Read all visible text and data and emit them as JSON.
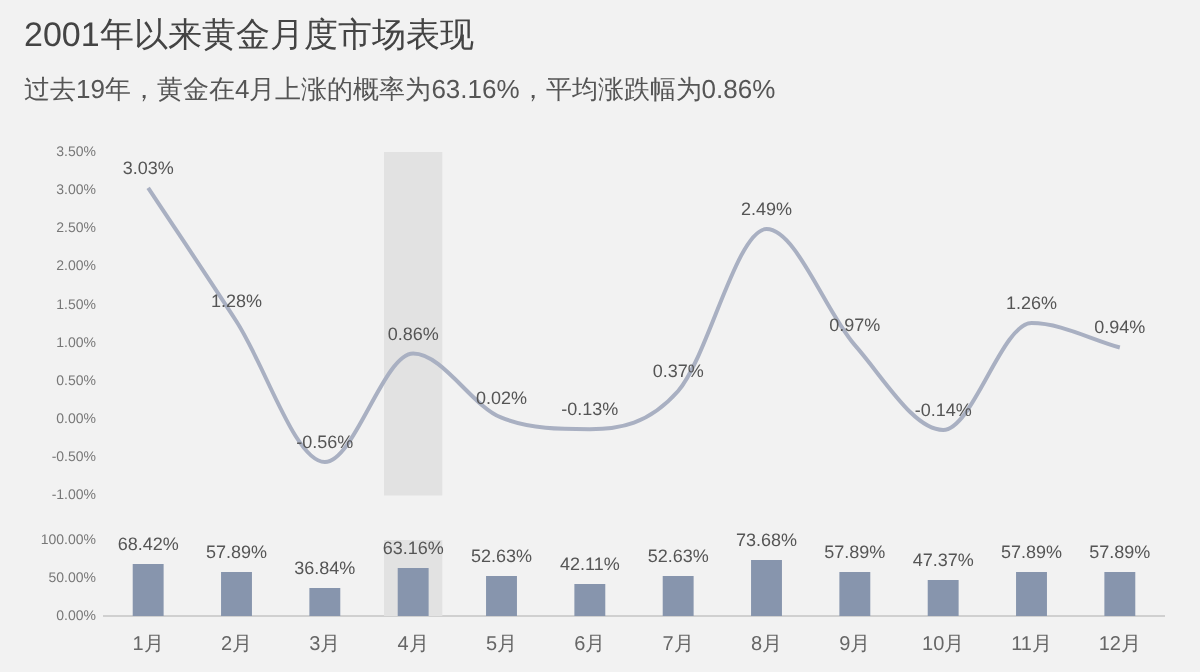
{
  "chart_data": [
    {
      "type": "line",
      "title": "2001年以来黄金月度市场表现",
      "subtitle": "过去19年，黄金在4月上涨的概率为63.16%，平均涨跌幅为0.86%",
      "categories": [
        "1月",
        "2月",
        "3月",
        "4月",
        "5月",
        "6月",
        "7月",
        "8月",
        "9月",
        "10月",
        "11月",
        "12月"
      ],
      "values": [
        3.03,
        1.28,
        -0.56,
        0.86,
        0.02,
        -0.13,
        0.37,
        2.49,
        0.97,
        -0.14,
        1.26,
        0.94
      ],
      "value_labels": [
        "3.03%",
        "1.28%",
        "-0.56%",
        "0.86%",
        "0.02%",
        "-0.13%",
        "0.37%",
        "2.49%",
        "0.97%",
        "-0.14%",
        "1.26%",
        "0.94%"
      ],
      "color": "#a9b0c2",
      "ylim": [
        -1,
        3.5
      ],
      "yticks": [
        {
          "value": -1,
          "label": "-1.00%"
        },
        {
          "value": -0.5,
          "label": "-0.50%"
        },
        {
          "value": 0,
          "label": "0.00%"
        },
        {
          "value": 0.5,
          "label": "0.50%"
        },
        {
          "value": 1,
          "label": "1.00%"
        },
        {
          "value": 1.5,
          "label": "1.50%"
        },
        {
          "value": 2,
          "label": "2.00%"
        },
        {
          "value": 2.5,
          "label": "2.50%"
        },
        {
          "value": 3,
          "label": "3.00%"
        },
        {
          "value": 3.5,
          "label": "3.50%"
        }
      ],
      "tick_labels": "y",
      "bands": [
        {
          "axis": "x",
          "from": "4月",
          "to": "4月",
          "color": "#e2e2e2"
        }
      ]
    },
    {
      "type": "bar",
      "categories": [
        "1月",
        "2月",
        "3月",
        "4月",
        "5月",
        "6月",
        "7月",
        "8月",
        "9月",
        "10月",
        "11月",
        "12月"
      ],
      "values": [
        68.42,
        57.89,
        36.84,
        63.16,
        52.63,
        42.11,
        52.63,
        73.68,
        57.89,
        47.37,
        57.89,
        57.89
      ],
      "value_labels": [
        "68.42%",
        "57.89%",
        "36.84%",
        "63.16%",
        "52.63%",
        "42.11%",
        "52.63%",
        "73.68%",
        "57.89%",
        "47.37%",
        "57.89%",
        "57.89%"
      ],
      "color": "#8795ad",
      "ylim": [
        0,
        100
      ],
      "yticks": [
        {
          "value": 0,
          "label": "0.00%"
        },
        {
          "value": 50,
          "label": "50.00%"
        },
        {
          "value": 100,
          "label": "100.00%"
        }
      ],
      "bands": [
        {
          "axis": "x",
          "from": "4月",
          "to": "4月",
          "color": "#e2e2e2"
        }
      ]
    }
  ]
}
